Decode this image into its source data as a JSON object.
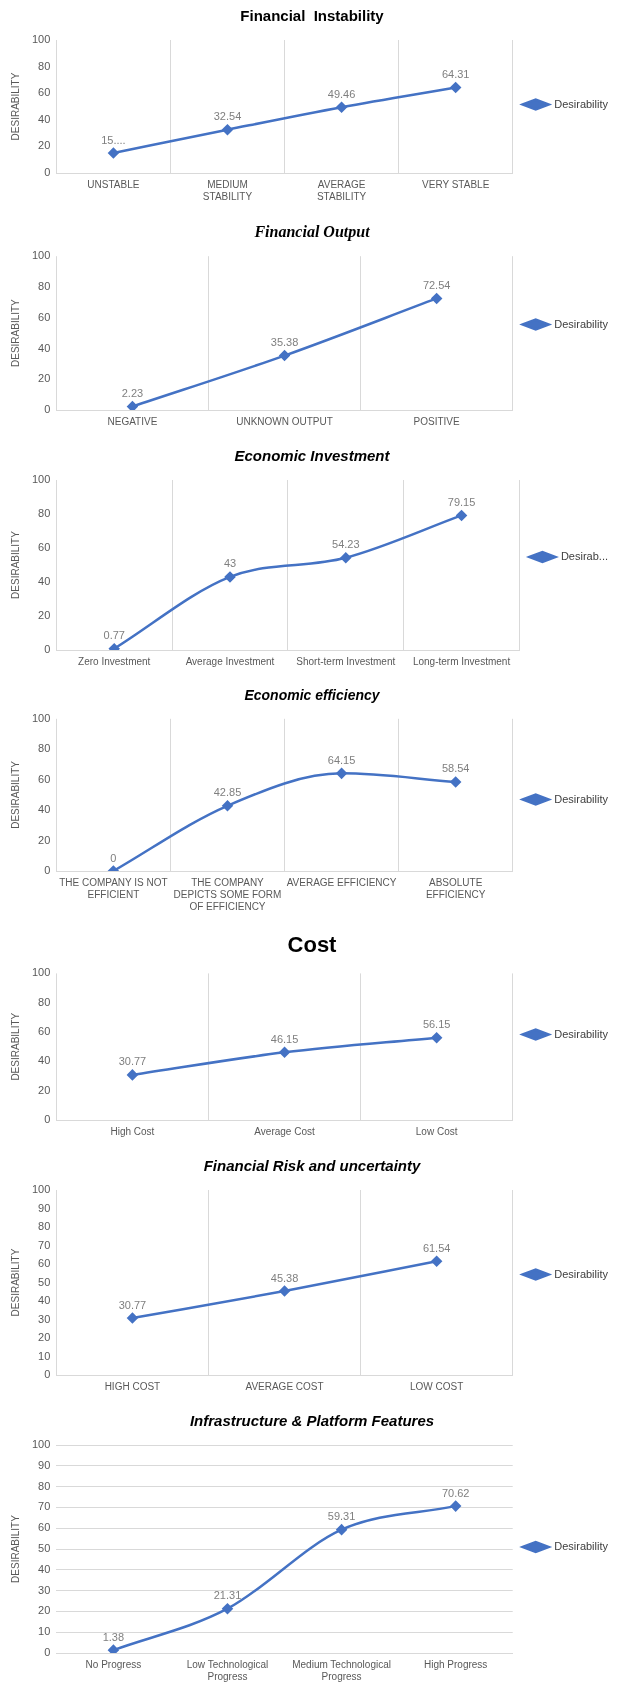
{
  "chart_data": [
    {
      "type": "line",
      "title": "Financial  Instability",
      "ylabel": "DESIRABILITY",
      "categories": [
        "UNSTABLE",
        "MEDIUM STABILITY",
        "AVERAGE STABILITY",
        "VERY STABLE"
      ],
      "series": [
        {
          "name": "Desirability",
          "color": "#4472c4",
          "values": [
            15,
            32.54,
            49.46,
            64.31
          ],
          "value_labels": [
            "15....",
            "32.54",
            "49.46",
            "64.31"
          ]
        }
      ],
      "ylim": [
        0,
        100
      ],
      "yticks": [
        0,
        20,
        40,
        60,
        80,
        100
      ],
      "grid": "x",
      "legend": "right",
      "marker": "diamond"
    },
    {
      "type": "line",
      "title": "Financial Output",
      "ylabel": "DESIRABILITY",
      "categories": [
        "NEGATIVE",
        "UNKNOWN OUTPUT",
        "POSITIVE"
      ],
      "series": [
        {
          "name": "Desirability",
          "color": "#4472c4",
          "values": [
            2.23,
            35.38,
            72.54
          ]
        }
      ],
      "ylim": [
        0,
        100
      ],
      "yticks": [
        0,
        20,
        40,
        60,
        80,
        100
      ],
      "grid": "x",
      "legend": "right",
      "marker": "diamond",
      "data_labels": true
    },
    {
      "type": "line",
      "title": "Economic Investment",
      "ylabel": "DESIRABILITY",
      "categories": [
        "Zero Investment",
        "Average Investment",
        "Short-term Investment",
        "Long-term Investment"
      ],
      "series": [
        {
          "name": "Desirab...",
          "color": "#4472c4",
          "values": [
            0.77,
            43,
            54.23,
            79.15
          ]
        }
      ],
      "ylim": [
        0,
        100
      ],
      "yticks": [
        0,
        20,
        40,
        60,
        80,
        100
      ],
      "grid": "x",
      "legend": "right",
      "marker": "diamond",
      "data_labels": true
    },
    {
      "type": "line",
      "title": "Economic efficiency",
      "ylabel": "DESIRABILITY",
      "categories": [
        "THE COMPANY IS NOT EFFICIENT",
        "THE COMPANY DEPICTS SOME FORM OF EFFICIENCY",
        "AVERAGE EFFICIENCY",
        "ABSOLUTE EFFICIENCY"
      ],
      "series": [
        {
          "name": "Desirability",
          "color": "#4472c4",
          "values": [
            0,
            42.85,
            64.15,
            58.54
          ]
        }
      ],
      "ylim": [
        0,
        100
      ],
      "yticks": [
        0,
        20,
        40,
        60,
        80,
        100
      ],
      "grid": "x",
      "legend": "right",
      "marker": "diamond",
      "data_labels": true
    },
    {
      "type": "line",
      "title": "Cost",
      "ylabel": "DESIRABILITY",
      "categories": [
        "High Cost",
        "Average Cost",
        "Low Cost"
      ],
      "series": [
        {
          "name": "Desirability",
          "color": "#4472c4",
          "values": [
            30.77,
            46.15,
            56.15
          ]
        }
      ],
      "ylim": [
        0,
        100
      ],
      "yticks": [
        0,
        20,
        40,
        60,
        80,
        100
      ],
      "grid": "x",
      "legend": "right",
      "marker": "diamond",
      "data_labels": true
    },
    {
      "type": "line",
      "title": "Financial Risk and uncertainty",
      "ylabel": "DESIRABILITY",
      "categories": [
        "HIGH COST",
        "AVERAGE COST",
        "LOW COST"
      ],
      "series": [
        {
          "name": "Desirability",
          "color": "#4472c4",
          "values": [
            30.77,
            45.38,
            61.54
          ]
        }
      ],
      "ylim": [
        0,
        100
      ],
      "yticks": [
        0,
        10,
        20,
        30,
        40,
        50,
        60,
        70,
        80,
        90,
        100
      ],
      "grid": "x",
      "legend": "right",
      "marker": "diamond",
      "data_labels": true
    },
    {
      "type": "line",
      "title": "Infrastructure & Platform Features",
      "ylabel": "DESIRABILITY",
      "categories": [
        "No Progress",
        "Low Technological Progress",
        "Medium Technological Progress",
        "High Progress"
      ],
      "series": [
        {
          "name": "Desirability",
          "color": "#4472c4",
          "values": [
            1.38,
            21.31,
            59.31,
            70.62
          ]
        }
      ],
      "ylim": [
        0,
        100
      ],
      "yticks": [
        0,
        10,
        20,
        30,
        40,
        50,
        60,
        70,
        80,
        90,
        100
      ],
      "grid": "y",
      "legend": "right",
      "marker": "diamond",
      "data_labels": true
    }
  ]
}
